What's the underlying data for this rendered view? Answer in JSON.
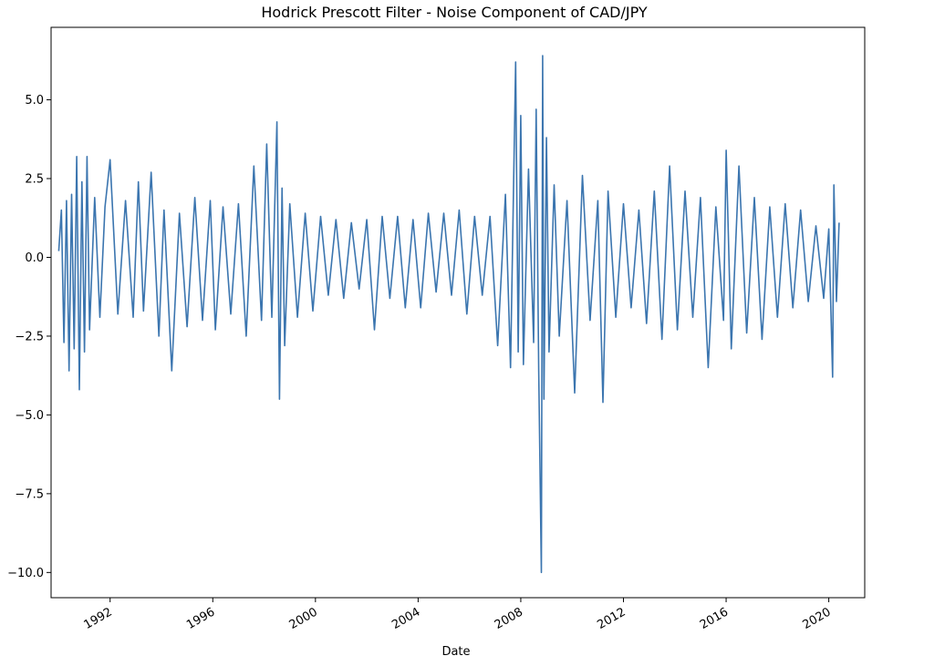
{
  "chart_data": {
    "type": "line",
    "title": "Hodrick Prescott Filter - Noise Component of CAD/JPY",
    "xlabel": "Date",
    "ylabel": "",
    "xlim": [
      1989.7,
      2021.4
    ],
    "ylim": [
      -10.8,
      7.3
    ],
    "x_ticks": [
      1992,
      1996,
      2000,
      2004,
      2008,
      2012,
      2016,
      2020
    ],
    "x_tick_labels": [
      "1992",
      "1996",
      "2000",
      "2004",
      "2008",
      "2012",
      "2016",
      "2020"
    ],
    "y_ticks": [
      5.0,
      2.5,
      0.0,
      -2.5,
      -5.0,
      -7.5,
      -10.0
    ],
    "y_tick_labels": [
      "5.0",
      "2.5",
      "0.0",
      "−2.5",
      "−5.0",
      "−7.5",
      "−10.0"
    ],
    "grid": false,
    "series": [
      {
        "color": "#3b75af",
        "x": [
          1990.0,
          1990.1,
          1990.2,
          1990.3,
          1990.4,
          1990.5,
          1990.6,
          1990.7,
          1990.8,
          1990.9,
          1991.0,
          1991.1,
          1991.2,
          1991.4,
          1991.6,
          1991.8,
          1992.0,
          1992.3,
          1992.6,
          1992.9,
          1993.1,
          1993.3,
          1993.6,
          1993.9,
          1994.1,
          1994.4,
          1994.7,
          1995.0,
          1995.3,
          1995.6,
          1995.9,
          1996.1,
          1996.4,
          1996.7,
          1997.0,
          1997.3,
          1997.6,
          1997.9,
          1998.1,
          1998.3,
          1998.5,
          1998.6,
          1998.7,
          1998.8,
          1999.0,
          1999.3,
          1999.6,
          1999.9,
          2000.2,
          2000.5,
          2000.8,
          2001.1,
          2001.4,
          2001.7,
          2002.0,
          2002.3,
          2002.6,
          2002.9,
          2003.2,
          2003.5,
          2003.8,
          2004.1,
          2004.4,
          2004.7,
          2005.0,
          2005.3,
          2005.6,
          2005.9,
          2006.2,
          2006.5,
          2006.8,
          2007.1,
          2007.4,
          2007.6,
          2007.8,
          2007.9,
          2008.0,
          2008.1,
          2008.3,
          2008.5,
          2008.6,
          2008.7,
          2008.8,
          2008.85,
          2008.9,
          2009.0,
          2009.1,
          2009.3,
          2009.5,
          2009.8,
          2010.1,
          2010.4,
          2010.7,
          2011.0,
          2011.2,
          2011.4,
          2011.7,
          2012.0,
          2012.3,
          2012.6,
          2012.9,
          2013.2,
          2013.5,
          2013.8,
          2014.1,
          2014.4,
          2014.7,
          2015.0,
          2015.3,
          2015.6,
          2015.9,
          2016.0,
          2016.2,
          2016.5,
          2016.8,
          2017.1,
          2017.4,
          2017.7,
          2018.0,
          2018.3,
          2018.6,
          2018.9,
          2019.2,
          2019.5,
          2019.8,
          2020.0,
          2020.15,
          2020.2,
          2020.3,
          2020.4
        ],
        "y": [
          0.2,
          1.5,
          -2.7,
          1.8,
          -3.6,
          2.0,
          -2.9,
          3.2,
          -4.2,
          2.4,
          -3.0,
          3.2,
          -2.3,
          1.9,
          -1.9,
          1.6,
          3.1,
          -1.8,
          1.8,
          -1.9,
          2.4,
          -1.7,
          2.7,
          -2.5,
          1.5,
          -3.6,
          1.4,
          -2.2,
          1.9,
          -2.0,
          1.8,
          -2.3,
          1.6,
          -1.8,
          1.7,
          -2.5,
          2.9,
          -2.0,
          3.6,
          -1.9,
          4.3,
          -4.5,
          2.2,
          -2.8,
          1.7,
          -1.9,
          1.4,
          -1.7,
          1.3,
          -1.2,
          1.2,
          -1.3,
          1.1,
          -1.0,
          1.2,
          -2.3,
          1.3,
          -1.3,
          1.3,
          -1.6,
          1.2,
          -1.6,
          1.4,
          -1.1,
          1.4,
          -1.2,
          1.5,
          -1.8,
          1.3,
          -1.2,
          1.3,
          -2.8,
          2.0,
          -3.5,
          6.2,
          -3.0,
          4.5,
          -3.4,
          2.8,
          -2.7,
          4.7,
          -3.6,
          -10.0,
          6.4,
          -4.5,
          3.8,
          -3.0,
          2.3,
          -2.5,
          1.8,
          -4.3,
          2.6,
          -2.0,
          1.8,
          -4.6,
          2.1,
          -1.9,
          1.7,
          -1.6,
          1.5,
          -2.1,
          2.1,
          -2.6,
          2.9,
          -2.3,
          2.1,
          -1.9,
          1.9,
          -3.5,
          1.6,
          -2.0,
          3.4,
          -2.9,
          2.9,
          -2.4,
          1.9,
          -2.6,
          1.6,
          -1.9,
          1.7,
          -1.6,
          1.5,
          -1.4,
          1.0,
          -1.3,
          0.9,
          -3.8,
          2.3,
          -1.4,
          1.1
        ]
      }
    ]
  }
}
